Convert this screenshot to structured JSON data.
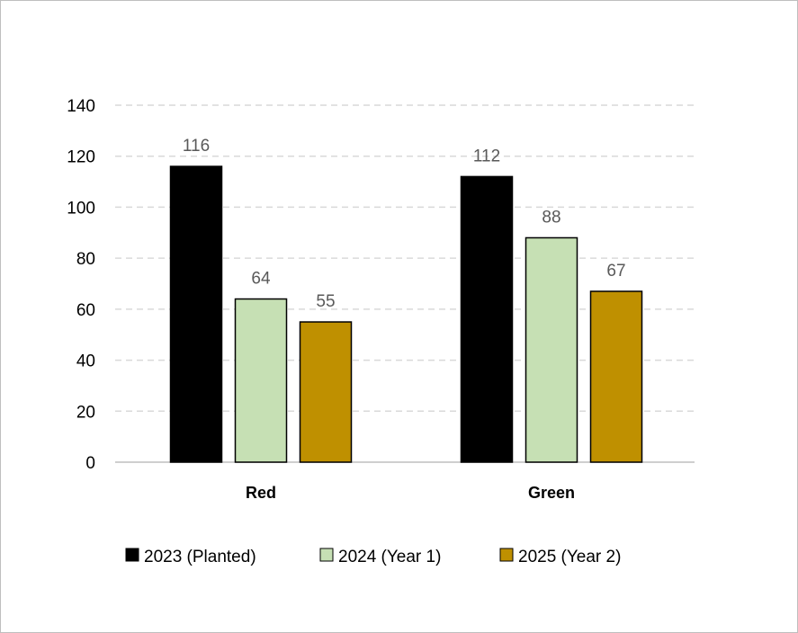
{
  "chart_data": {
    "type": "bar",
    "title": "",
    "xlabel": "",
    "ylabel": "",
    "categories": [
      "Red",
      "Green"
    ],
    "series": [
      {
        "name": "2023 (Planted)",
        "values": [
          116,
          112
        ],
        "color": "#000000"
      },
      {
        "name": "2024 (Year 1)",
        "values": [
          64,
          88
        ],
        "color": "#c6e0b4"
      },
      {
        "name": "2025 (Year 2)",
        "values": [
          55,
          67
        ],
        "color": "#bf9000"
      }
    ],
    "ylim": [
      0,
      140
    ],
    "yticks": [
      "0",
      "20",
      "40",
      "60",
      "80",
      "100",
      "120",
      "140"
    ],
    "grid": "horizontal-dashed",
    "data_labels": true,
    "legend_position": "bottom"
  }
}
